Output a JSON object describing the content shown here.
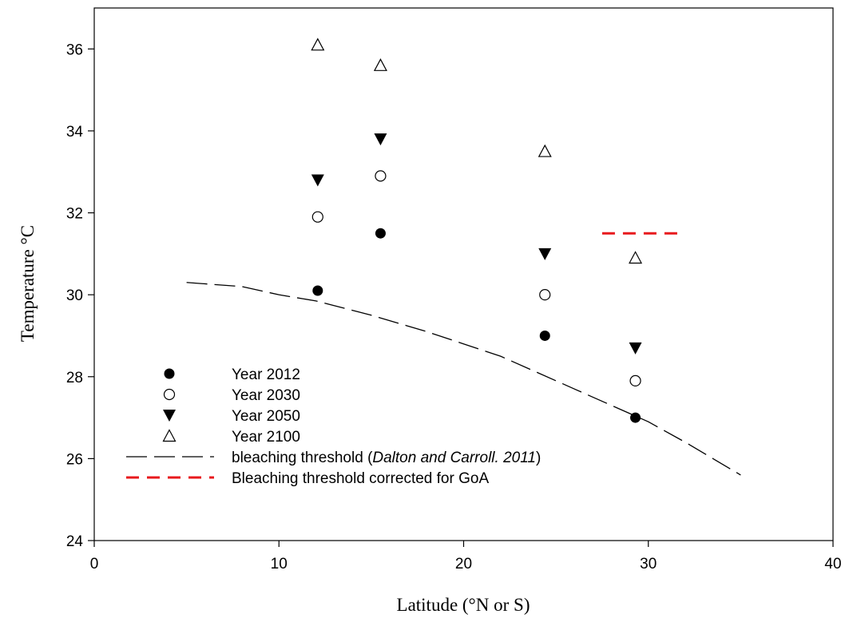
{
  "chart_data": {
    "type": "scatter",
    "title": "",
    "xlabel": "Latitude (°N or S)",
    "ylabel": "Temperature °C",
    "xlim": [
      0,
      40
    ],
    "ylim": [
      24,
      37
    ],
    "xticks": [
      0,
      10,
      20,
      30,
      40
    ],
    "yticks": [
      24,
      26,
      28,
      30,
      32,
      34,
      36
    ],
    "grid": false,
    "legend_position": "bottom-left",
    "series": [
      {
        "name": "Year 2012",
        "marker": "filled-circle",
        "x": [
          12.1,
          15.5,
          24.4,
          29.3
        ],
        "y": [
          30.1,
          31.5,
          29.0,
          27.0
        ]
      },
      {
        "name": "Year 2030",
        "marker": "open-circle",
        "x": [
          12.1,
          15.5,
          24.4,
          29.3
        ],
        "y": [
          31.9,
          32.9,
          30.0,
          27.9
        ]
      },
      {
        "name": "Year 2050",
        "marker": "filled-down-triangle",
        "x": [
          12.1,
          15.5,
          24.4,
          29.3
        ],
        "y": [
          32.8,
          33.8,
          31.0,
          28.7
        ]
      },
      {
        "name": "Year 2100",
        "marker": "open-up-triangle",
        "x": [
          12.1,
          15.5,
          24.4,
          29.3
        ],
        "y": [
          36.1,
          35.6,
          33.5,
          30.9
        ]
      }
    ],
    "lines": [
      {
        "name": "bleaching threshold (Dalton and Carroll. 2011)",
        "label_plain": "bleaching threshold (",
        "label_italic": "Dalton and Carroll. 2011",
        "label_close": ")",
        "style": "long-dash",
        "color": "#000000",
        "x": [
          5,
          8,
          10,
          12,
          15,
          18,
          20,
          22,
          24,
          26,
          28,
          30,
          32,
          35
        ],
        "y": [
          30.3,
          30.2,
          30.0,
          29.85,
          29.5,
          29.1,
          28.8,
          28.5,
          28.1,
          27.7,
          27.3,
          26.9,
          26.4,
          25.6
        ]
      },
      {
        "name": "Bleaching threshold corrected for GoA",
        "style": "dash",
        "color": "#e8191d",
        "x": [
          27.5,
          31.7
        ],
        "y": [
          31.5,
          31.5
        ]
      }
    ]
  }
}
